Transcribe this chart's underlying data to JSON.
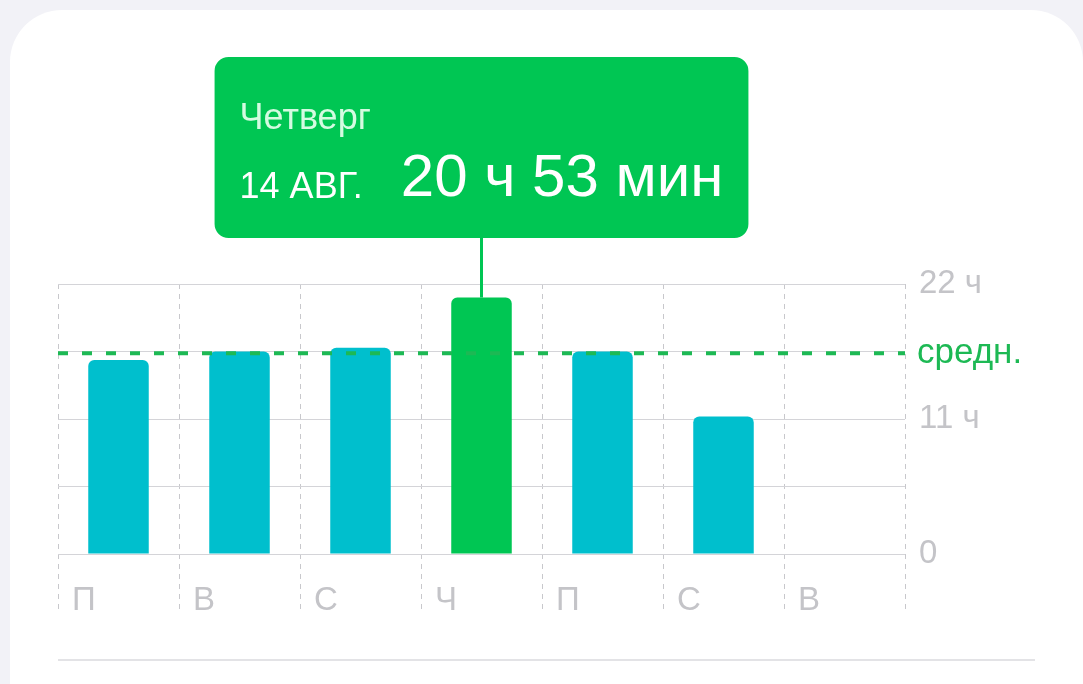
{
  "chart_data": {
    "type": "bar",
    "categories": [
      "П",
      "В",
      "С",
      "Ч",
      "П",
      "С",
      "В"
    ],
    "values": [
      15.8,
      16.5,
      16.8,
      20.9,
      16.5,
      11.2,
      null
    ],
    "colors": [
      "#00bfcd",
      "#00bfcd",
      "#00bfcd",
      "#00c653",
      "#00bfcd",
      "#00bfcd",
      "#00bfcd"
    ],
    "annotations": [
      "Четверг",
      "14 АВГ.",
      "20 ч 53 мин"
    ],
    "ylim": [
      0,
      22
    ],
    "yticks": [
      0,
      {
        "value": 5.5,
        "label": null
      },
      {
        "value": 11,
        "label": "11 ч"
      },
      {
        "value": 16.5,
        "label": null
      },
      {
        "value": 22,
        "label": "22 ч"
      }
    ],
    "ref_lines": [
      {
        "axis": "y",
        "value": 16.35,
        "label": "средн.",
        "color": "#1db954",
        "line_style": "dashed"
      }
    ],
    "grid": true
  }
}
